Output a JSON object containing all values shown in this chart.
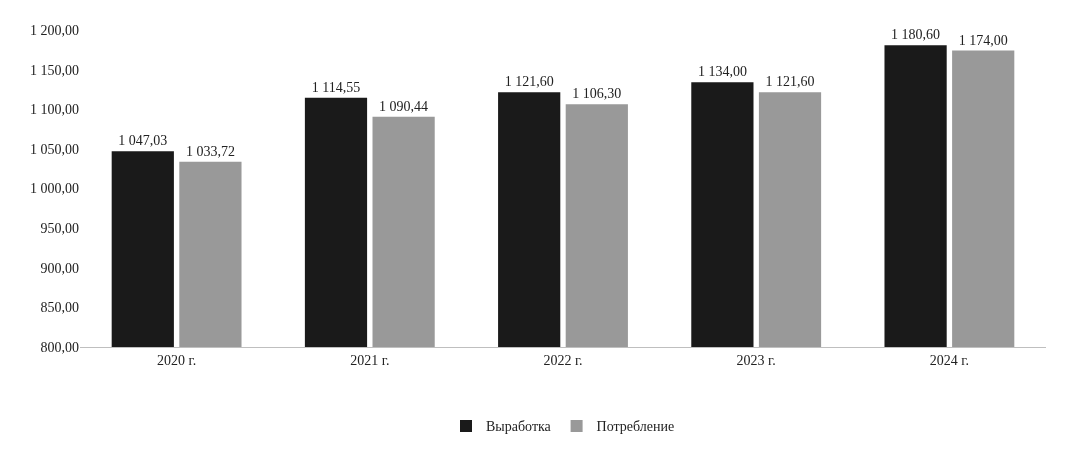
{
  "chart_data": {
    "type": "bar",
    "categories": [
      "2020 г.",
      "2021 г.",
      "2022 г.",
      "2023 г.",
      "2024 г."
    ],
    "series": [
      {
        "name": "Выработка",
        "color": "#1a1a1a",
        "values": [
          1047.03,
          1114.55,
          1121.6,
          1134.0,
          1180.6
        ],
        "value_labels": [
          "1 047,03",
          "1 114,55",
          "1 121,60",
          "1 134,00",
          "1 180,60"
        ]
      },
      {
        "name": "Потребление",
        "color": "#999999",
        "values": [
          1033.72,
          1090.44,
          1106.3,
          1121.6,
          1174.0
        ],
        "value_labels": [
          "1 033,72",
          "1 090,44",
          "1 106,30",
          "1 121,60",
          "1 174,00"
        ]
      }
    ],
    "ylim": [
      800,
      1200
    ],
    "yticks": [
      {
        "value": 800,
        "label": "800,00"
      },
      {
        "value": 850,
        "label": "850,00"
      },
      {
        "value": 900,
        "label": "900,00"
      },
      {
        "value": 950,
        "label": "950,00"
      },
      {
        "value": 1000,
        "label": "1 000,00"
      },
      {
        "value": 1050,
        "label": "1 050,00"
      },
      {
        "value": 1100,
        "label": "1 100,00"
      },
      {
        "value": 1150,
        "label": "1 150,00"
      },
      {
        "value": 1200,
        "label": "1 200,00"
      }
    ],
    "grid": false,
    "legend": "bottom"
  }
}
